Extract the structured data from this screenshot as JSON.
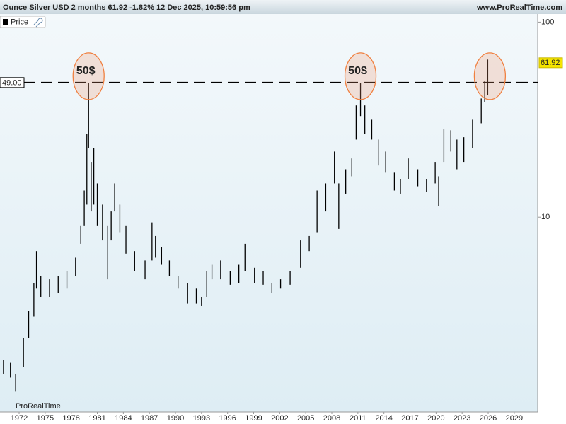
{
  "chart_data": {
    "type": "ohlc",
    "title": "Ounce Silver USD 2 months 61.92 -1.82% 12 Dec 2025, 10:59:56 pm",
    "source": "www.ProRealTime.com",
    "watermark": "ProRealTime",
    "legend": "Price",
    "color": "#000000",
    "log_scale": true,
    "grid": false,
    "xlim": [
      1969.8,
      2031.7
    ],
    "xticks": [
      1972,
      1975,
      1978,
      1981,
      1984,
      1987,
      1990,
      1993,
      1996,
      1999,
      2002,
      2005,
      2008,
      2011,
      2014,
      2017,
      2020,
      2023,
      2026,
      2029
    ],
    "ylim": [
      1.0,
      110
    ],
    "yticks": [
      10,
      100
    ],
    "x": [
      1970.2,
      1971.0,
      1971.6,
      1972.5,
      1973.1,
      1973.7,
      1974.0,
      1974.5,
      1975.5,
      1976.5,
      1977.5,
      1978.5,
      1979.1,
      1979.5,
      1979.8,
      1980.0,
      1980.3,
      1980.6,
      1981.0,
      1981.6,
      1982.2,
      1982.6,
      1983.0,
      1983.6,
      1984.3,
      1985.3,
      1986.5,
      1987.3,
      1987.7,
      1988.4,
      1989.3,
      1990.3,
      1991.4,
      1992.4,
      1993.0,
      1993.6,
      1994.2,
      1995.2,
      1996.3,
      1997.3,
      1998.0,
      1999.1,
      2000.1,
      2001.1,
      2002.1,
      2003.2,
      2004.4,
      2005.4,
      2006.3,
      2007.3,
      2008.3,
      2008.8,
      2009.6,
      2010.3,
      2010.8,
      2011.3,
      2011.8,
      2012.6,
      2013.4,
      2014.2,
      2015.2,
      2015.9,
      2016.8,
      2017.9,
      2018.9,
      2019.9,
      2020.3,
      2020.9,
      2021.7,
      2022.4,
      2023.2,
      2024.2,
      2025.2,
      2025.6,
      2025.95
    ],
    "high": [
      1.85,
      1.8,
      1.57,
      2.4,
      3.3,
      4.6,
      6.7,
      5.0,
      4.8,
      5.0,
      5.3,
      6.2,
      9.0,
      13.7,
      26.8,
      48.7,
      19.2,
      22.7,
      14.9,
      11.6,
      9.0,
      10.7,
      14.9,
      11.6,
      9.0,
      6.7,
      6.0,
      9.4,
      8.0,
      7.0,
      6.0,
      5.0,
      4.6,
      4.3,
      3.9,
      5.3,
      5.7,
      6.0,
      5.3,
      5.7,
      7.3,
      5.5,
      5.3,
      4.6,
      4.8,
      5.3,
      7.6,
      8.0,
      13.7,
      14.9,
      21.7,
      14.9,
      17.6,
      20.0,
      37.4,
      48.7,
      37.4,
      31.6,
      25.0,
      21.7,
      16.9,
      15.6,
      20.0,
      17.6,
      15.6,
      19.2,
      16.2,
      28.2,
      27.9,
      25.0,
      25.7,
      31.6,
      40.6,
      50.0,
      64.3
    ],
    "low": [
      1.57,
      1.5,
      1.27,
      1.7,
      2.4,
      3.1,
      4.3,
      3.9,
      3.9,
      4.1,
      4.3,
      5.0,
      7.3,
      9.0,
      11.6,
      22.7,
      10.7,
      11.6,
      9.0,
      7.6,
      4.8,
      7.6,
      10.7,
      8.3,
      6.5,
      5.3,
      4.8,
      6.0,
      6.2,
      5.7,
      5.0,
      4.3,
      3.6,
      3.6,
      3.5,
      3.9,
      4.8,
      4.8,
      4.5,
      4.6,
      5.3,
      4.6,
      4.5,
      4.1,
      4.3,
      4.5,
      5.5,
      6.7,
      8.3,
      10.7,
      14.9,
      8.7,
      13.2,
      16.2,
      25.0,
      33.0,
      26.8,
      25.0,
      18.4,
      16.9,
      13.7,
      13.2,
      15.6,
      14.4,
      13.5,
      14.9,
      11.4,
      19.2,
      21.7,
      17.6,
      19.2,
      22.7,
      30.3,
      39.0,
      42.3
    ],
    "reference_line": {
      "value": 49,
      "label": "49.00"
    },
    "last_price": 61.92,
    "annotations": [
      {
        "text": "50$",
        "x": 1980.0
      },
      {
        "text": "50$",
        "x": 2011.3
      }
    ]
  }
}
